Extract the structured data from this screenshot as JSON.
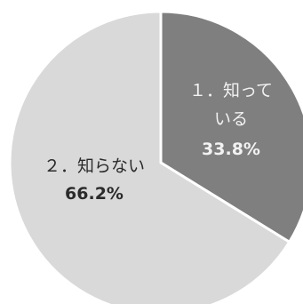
{
  "chart_data": {
    "type": "pie",
    "categories": [
      "１．知ってる",
      "２．知らない"
    ],
    "category_label_lines": [
      [
        "１．知って",
        "いる"
      ],
      [
        "２．知らない"
      ]
    ],
    "values": [
      33.8,
      66.2
    ],
    "value_labels": [
      "33.8%",
      "66.2%"
    ],
    "colors": [
      "#7f7f7f",
      "#d9d9d9"
    ],
    "start_angle_deg": 0,
    "direction": "clockwise",
    "legend": "none"
  }
}
